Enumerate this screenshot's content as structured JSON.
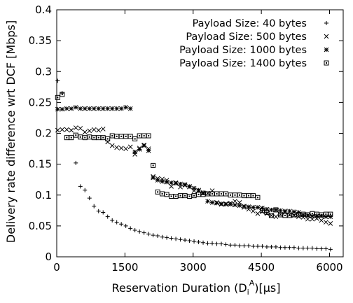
{
  "chart_data": {
    "type": "scatter",
    "title": "",
    "xlabel_prefix": "Reservation Duration  (D",
    "xlabel_sub": "i",
    "xlabel_sup": "A",
    "xlabel_suffix": ")[μs]",
    "ylabel": "Delivery rate difference wrt DCF [Mbps]",
    "xlim": [
      0,
      6300
    ],
    "ylim": [
      0,
      0.4
    ],
    "xticks": [
      0,
      1500,
      3000,
      4500,
      6000
    ],
    "xtick_labels": [
      "0",
      "1500",
      "3000",
      "4500",
      "6000"
    ],
    "yticks": [
      0,
      0.05,
      0.1,
      0.15,
      0.2,
      0.25,
      0.3,
      0.35,
      0.4
    ],
    "ytick_labels": [
      "0",
      "0.05",
      "0.1",
      "0.15",
      "0.2",
      "0.25",
      "0.3",
      "0.35",
      "0.4"
    ],
    "grid": false,
    "legend_position": "top-right",
    "series": [
      {
        "name": "Payload Size: 40 bytes",
        "marker": "plus",
        "x": [
          20,
          120,
          420,
          520,
          620,
          720,
          820,
          920,
          1020,
          1120,
          1220,
          1320,
          1420,
          1520,
          1620,
          1720,
          1820,
          1920,
          2020,
          2120,
          2220,
          2320,
          2420,
          2520,
          2620,
          2720,
          2820,
          2920,
          3020,
          3120,
          3220,
          3320,
          3420,
          3520,
          3620,
          3720,
          3820,
          3920,
          4020,
          4120,
          4220,
          4320,
          4420,
          4520,
          4620,
          4720,
          4820,
          4920,
          5020,
          5120,
          5220,
          5320,
          5420,
          5520,
          5620,
          5720,
          5820,
          5920,
          6020
        ],
        "y": [
          0.285,
          0.265,
          0.152,
          0.114,
          0.108,
          0.095,
          0.082,
          0.074,
          0.072,
          0.065,
          0.059,
          0.056,
          0.053,
          0.05,
          0.046,
          0.043,
          0.041,
          0.039,
          0.037,
          0.035,
          0.034,
          0.032,
          0.031,
          0.03,
          0.029,
          0.028,
          0.027,
          0.026,
          0.025,
          0.024,
          0.023,
          0.022,
          0.022,
          0.021,
          0.021,
          0.02,
          0.019,
          0.019,
          0.018,
          0.018,
          0.018,
          0.017,
          0.017,
          0.017,
          0.016,
          0.016,
          0.016,
          0.015,
          0.015,
          0.015,
          0.015,
          0.014,
          0.014,
          0.014,
          0.014,
          0.013,
          0.013,
          0.013,
          0.012
        ]
      },
      {
        "name": "Payload Size: 500 bytes",
        "marker": "cross",
        "x": [
          20,
          120,
          220,
          320,
          420,
          520,
          620,
          720,
          820,
          920,
          1020,
          1120,
          1220,
          1320,
          1420,
          1520,
          1620,
          1720,
          1820,
          1920,
          2020,
          2120,
          2220,
          2320,
          2420,
          2520,
          2620,
          2720,
          2820,
          2920,
          3020,
          3120,
          3220,
          3320,
          3420,
          3520,
          3620,
          3720,
          3820,
          3920,
          4020,
          4120,
          4220,
          4320,
          4420,
          4520,
          4620,
          4720,
          4820,
          4920,
          5020,
          5120,
          5220,
          5320,
          5420,
          5520,
          5620,
          5720,
          5820,
          5920,
          6020
        ],
        "y": [
          0.205,
          0.206,
          0.206,
          0.205,
          0.209,
          0.208,
          0.202,
          0.204,
          0.206,
          0.205,
          0.207,
          0.186,
          0.18,
          0.177,
          0.176,
          0.175,
          0.178,
          0.166,
          0.176,
          0.181,
          0.175,
          0.13,
          0.127,
          0.126,
          0.124,
          0.114,
          0.12,
          0.113,
          0.116,
          0.113,
          0.107,
          0.107,
          0.103,
          0.103,
          0.107,
          0.088,
          0.085,
          0.086,
          0.087,
          0.09,
          0.088,
          0.08,
          0.077,
          0.074,
          0.07,
          0.073,
          0.07,
          0.067,
          0.065,
          0.069,
          0.072,
          0.068,
          0.067,
          0.065,
          0.064,
          0.061,
          0.061,
          0.062,
          0.059,
          0.056,
          0.054
        ]
      },
      {
        "name": "Payload Size: 1000 bytes",
        "marker": "star",
        "x": [
          20,
          120,
          220,
          320,
          420,
          520,
          620,
          720,
          820,
          920,
          1020,
          1120,
          1220,
          1320,
          1420,
          1520,
          1620,
          1720,
          1820,
          1920,
          2020,
          2120,
          2220,
          2320,
          2420,
          2520,
          2620,
          2720,
          2820,
          2920,
          3020,
          3120,
          3220,
          3320,
          3420,
          3520,
          3620,
          3720,
          3820,
          3920,
          4020,
          4120,
          4220,
          4320,
          4420,
          4520,
          4620,
          4720,
          4820,
          4920,
          5020,
          5120,
          5220,
          5320,
          5420,
          5520,
          5620,
          5720,
          5820,
          5920,
          6020
        ],
        "y": [
          0.239,
          0.239,
          0.24,
          0.24,
          0.242,
          0.24,
          0.24,
          0.24,
          0.24,
          0.24,
          0.24,
          0.24,
          0.24,
          0.24,
          0.24,
          0.242,
          0.24,
          0.17,
          0.174,
          0.18,
          0.172,
          0.128,
          0.124,
          0.122,
          0.121,
          0.12,
          0.119,
          0.118,
          0.117,
          0.114,
          0.111,
          0.108,
          0.104,
          0.09,
          0.088,
          0.087,
          0.086,
          0.085,
          0.085,
          0.084,
          0.083,
          0.082,
          0.081,
          0.08,
          0.08,
          0.079,
          0.077,
          0.076,
          0.076,
          0.075,
          0.074,
          0.074,
          0.073,
          0.072,
          0.068,
          0.067,
          0.066,
          0.066,
          0.066,
          0.065,
          0.065
        ]
      },
      {
        "name": "Payload Size: 1400 bytes",
        "marker": "square-dot",
        "x": [
          20,
          120,
          220,
          320,
          420,
          520,
          620,
          720,
          820,
          920,
          1020,
          1120,
          1220,
          1320,
          1420,
          1520,
          1620,
          1720,
          1820,
          1920,
          2020,
          2120,
          2220,
          2320,
          2420,
          2520,
          2620,
          2720,
          2820,
          2920,
          3020,
          3120,
          3220,
          3320,
          3420,
          3520,
          3620,
          3720,
          3820,
          3920,
          4020,
          4120,
          4220,
          4320,
          4420,
          4520,
          4620,
          4720,
          4820,
          4920,
          5020,
          5120,
          5220,
          5320,
          5420,
          5520,
          5620,
          5720,
          5820,
          5920,
          6020
        ],
        "y": [
          0.258,
          0.263,
          0.193,
          0.193,
          0.197,
          0.194,
          0.193,
          0.194,
          0.193,
          0.193,
          0.193,
          0.191,
          0.196,
          0.195,
          0.195,
          0.195,
          0.195,
          0.191,
          0.196,
          0.196,
          0.196,
          0.148,
          0.105,
          0.102,
          0.101,
          0.098,
          0.098,
          0.099,
          0.099,
          0.098,
          0.099,
          0.101,
          0.101,
          0.102,
          0.102,
          0.102,
          0.102,
          0.102,
          0.1,
          0.1,
          0.1,
          0.099,
          0.099,
          0.099,
          0.096,
          0.075,
          0.072,
          0.067,
          0.076,
          0.068,
          0.067,
          0.067,
          0.068,
          0.068,
          0.069,
          0.068,
          0.07,
          0.069,
          0.068,
          0.069,
          0.069
        ]
      }
    ]
  }
}
